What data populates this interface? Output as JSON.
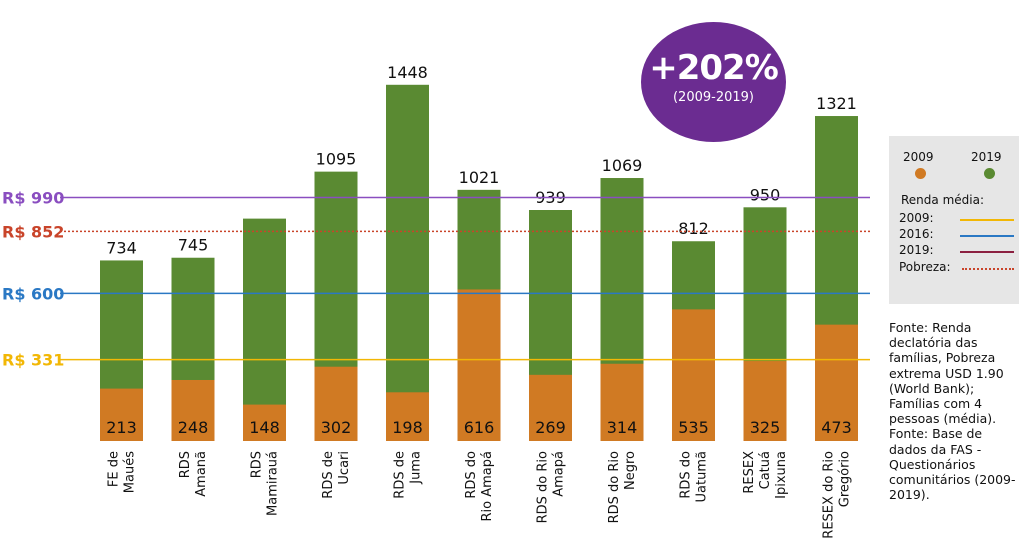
{
  "chart_data": {
    "type": "bar",
    "stacked_overlay": true,
    "categories": [
      [
        "FE de",
        "Maués"
      ],
      [
        "RDS",
        "Amanã"
      ],
      [
        "RDS",
        "Mamirauá"
      ],
      [
        "RDS de",
        "Ucari"
      ],
      [
        "RDS de",
        "Juma"
      ],
      [
        "RDS do",
        "Rio Amapá"
      ],
      [
        "RDS do Rio",
        "Amapá"
      ],
      [
        "RDS do Rio",
        "Negro"
      ],
      [
        "RDS do",
        "Uatumã"
      ],
      [
        "RESEX",
        "Catuá",
        "Ipixuna"
      ],
      [
        "RESEX do Rio",
        "Gregório"
      ]
    ],
    "series": [
      {
        "name": "2009",
        "color": "#d07a23",
        "values": [
          213,
          248,
          148,
          302,
          198,
          616,
          269,
          314,
          535,
          325,
          473
        ]
      },
      {
        "name": "2019",
        "color": "#5a8a32",
        "values": [
          734,
          745,
          904,
          1095,
          1448,
          1021,
          939,
          1069,
          812,
          950,
          1321
        ]
      }
    ],
    "top_labels": [
      "734",
      "745",
      "",
      "1095",
      "1448",
      "1021",
      "939",
      "1069",
      "812",
      "950",
      "1321"
    ],
    "reference_lines": [
      {
        "label": "R$ 990",
        "value": 990,
        "color": "#8a4ec0",
        "style": "solid"
      },
      {
        "label": "R$ 852",
        "value": 852,
        "color": "#c9442a",
        "style": "dotted"
      },
      {
        "label": "R$ 600",
        "value": 600,
        "color": "#2a78c4",
        "style": "solid"
      },
      {
        "label": "R$ 331",
        "value": 331,
        "color": "#f2b705",
        "style": "solid"
      }
    ],
    "ylim": [
      0,
      1600
    ]
  },
  "badge": {
    "main": "+202%",
    "sub": "(2009-2019)",
    "color": "#6b2c91"
  },
  "legend": {
    "year_2009": "2009",
    "year_2019": "2019",
    "title": "Renda média:",
    "rows": [
      {
        "label": "2009:",
        "color": "#f2b705",
        "style": "solid"
      },
      {
        "label": "2016:",
        "color": "#2a78c4",
        "style": "solid"
      },
      {
        "label": "2019:",
        "color": "#8b2040",
        "style": "solid"
      },
      {
        "label": "Pobreza:",
        "color": "#c9442a",
        "style": "dotted"
      }
    ]
  },
  "source": "Fonte: Renda declatória das famílias, Pobreza extrema USD 1.90 (World Bank); Famílias com 4 pessoas (média). Fonte: Base de dados da FAS - Questionários comunitários (2009-2019)."
}
